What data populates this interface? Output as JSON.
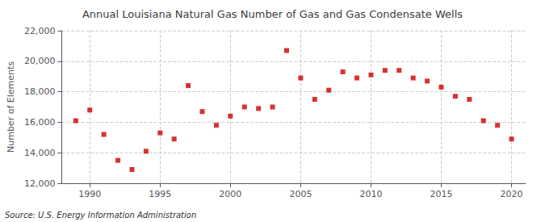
{
  "chart_data": {
    "type": "scatter",
    "title": "Annual Louisiana Natural Gas Number of Gas and Gas Condensate Wells",
    "ylabel": "Number of Elements",
    "annotations": [
      "Source: U.S. Energy Information Administration"
    ],
    "x": [
      1989,
      1990,
      1991,
      1992,
      1993,
      1994,
      1995,
      1996,
      1997,
      1998,
      1999,
      2000,
      2001,
      2002,
      2003,
      2004,
      2005,
      2006,
      2007,
      2008,
      2009,
      2010,
      2011,
      2012,
      2013,
      2014,
      2015,
      2016,
      2017,
      2018,
      2019,
      2020
    ],
    "values": [
      16100,
      16800,
      15200,
      13500,
      12900,
      14100,
      15300,
      14900,
      18400,
      16700,
      15800,
      16400,
      17000,
      16900,
      17000,
      20700,
      18900,
      17500,
      18100,
      19300,
      18900,
      19100,
      19400,
      19400,
      18900,
      18700,
      18300,
      17700,
      17500,
      16100,
      15800,
      14900
    ],
    "color": "#cc0000",
    "marker": "square",
    "xlim": [
      1988.0,
      2021.0
    ],
    "ylim": [
      12000,
      22000
    ],
    "xticks": [
      1990,
      1995,
      2000,
      2005,
      2010,
      2015,
      2020
    ],
    "yticks": [
      {
        "value": 12000,
        "label": "12,000"
      },
      {
        "value": 14000,
        "label": "14,000"
      },
      {
        "value": 16000,
        "label": "16,000"
      },
      {
        "value": 18000,
        "label": "18,000"
      },
      {
        "value": 20000,
        "label": "20,000"
      },
      {
        "value": 22000,
        "label": "22,000"
      }
    ],
    "grid": true
  }
}
